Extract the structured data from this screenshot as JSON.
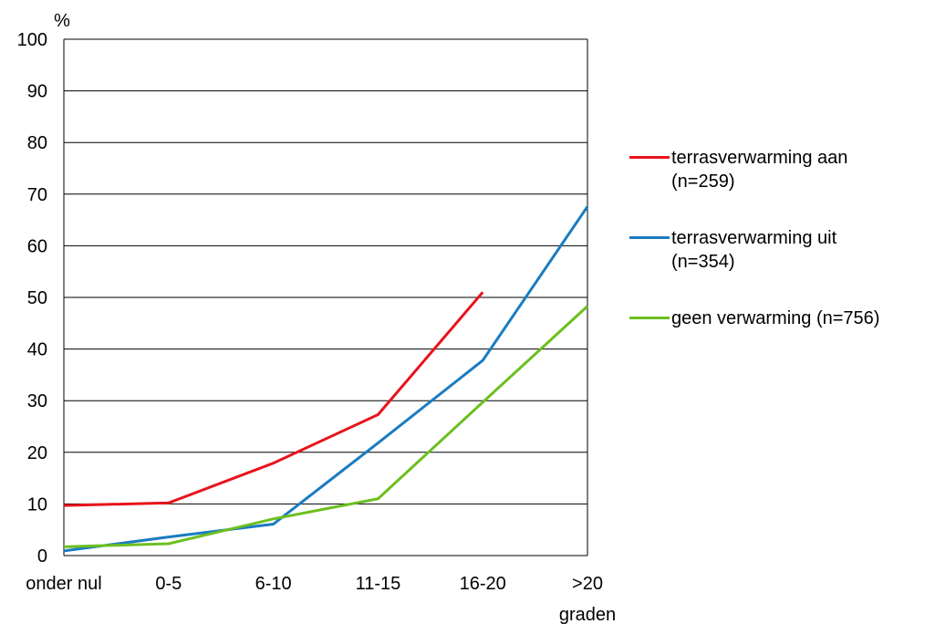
{
  "chart_data": {
    "type": "line",
    "ylabel": "%",
    "xlabel": "graden",
    "ylim": [
      0,
      100
    ],
    "yticks": [
      0,
      10,
      20,
      30,
      40,
      50,
      60,
      70,
      80,
      90,
      100
    ],
    "categories": [
      "onder nul",
      "0-5",
      "6-10",
      "11-15",
      "16-20",
      ">20"
    ],
    "grid": true,
    "legend_position": "right",
    "series": [
      {
        "name": "terrasverwarming aan (n=259)",
        "name_lines": [
          "terrasverwarming aan",
          "(n=259)"
        ],
        "color": "#e8141c",
        "values": [
          9.7,
          10.2,
          17.9,
          27.3,
          51.0,
          null
        ]
      },
      {
        "name": "terrasverwarming uit (n=354)",
        "name_lines": [
          "terrasverwarming uit",
          "(n=354)"
        ],
        "color": "#1a7cc1",
        "values": [
          0.9,
          3.6,
          6.1,
          21.8,
          37.8,
          67.6
        ]
      },
      {
        "name": "geen verwarming (n=756)",
        "name_lines": [
          "geen verwarming (n=756)"
        ],
        "color": "#6cbf1f",
        "values": [
          1.7,
          2.3,
          7.1,
          11.0,
          29.7,
          48.3
        ]
      }
    ]
  }
}
